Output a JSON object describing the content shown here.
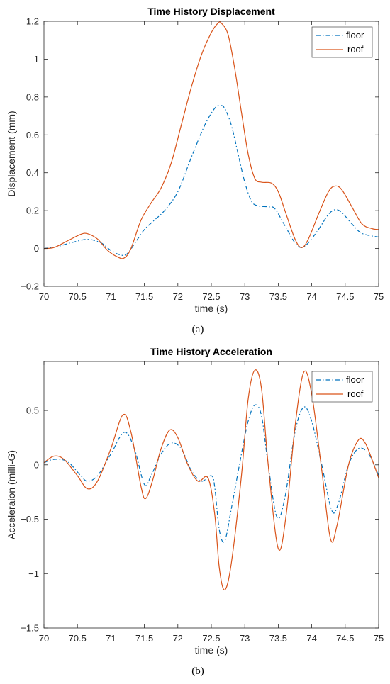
{
  "chart_data": [
    {
      "type": "line",
      "title": "Time History Displacement",
      "xlabel": "time (s)",
      "ylabel": "Displacement (mm)",
      "xlim": [
        70,
        75
      ],
      "ylim": [
        -0.2,
        1.2
      ],
      "xticks": [
        "70",
        "70.5",
        "71",
        "71.5",
        "72",
        "72.5",
        "73",
        "73.5",
        "74",
        "74.5",
        "75"
      ],
      "yticks": [
        "-0.2",
        "0",
        "0.2",
        "0.4",
        "0.6",
        "0.8",
        "1",
        "1.2"
      ],
      "legend_position": "top-right",
      "caption": "(a)",
      "series": [
        {
          "name": "floor",
          "color": "#0072BD",
          "style": "dash-dot",
          "points": [
            [
              70,
              0
            ],
            [
              70.2,
              0.01
            ],
            [
              70.4,
              0.03
            ],
            [
              70.65,
              0.048
            ],
            [
              70.85,
              0.03
            ],
            [
              71,
              -0.01
            ],
            [
              71.15,
              -0.035
            ],
            [
              71.25,
              -0.025
            ],
            [
              71.4,
              0.05
            ],
            [
              71.5,
              0.1
            ],
            [
              71.65,
              0.15
            ],
            [
              71.8,
              0.2
            ],
            [
              72,
              0.3
            ],
            [
              72.2,
              0.48
            ],
            [
              72.4,
              0.65
            ],
            [
              72.55,
              0.74
            ],
            [
              72.63,
              0.755
            ],
            [
              72.7,
              0.74
            ],
            [
              72.8,
              0.65
            ],
            [
              72.9,
              0.5
            ],
            [
              73,
              0.35
            ],
            [
              73.1,
              0.25
            ],
            [
              73.2,
              0.225
            ],
            [
              73.35,
              0.22
            ],
            [
              73.45,
              0.21
            ],
            [
              73.6,
              0.12
            ],
            [
              73.75,
              0.03
            ],
            [
              73.85,
              0.005
            ],
            [
              73.95,
              0.03
            ],
            [
              74.1,
              0.1
            ],
            [
              74.25,
              0.18
            ],
            [
              74.35,
              0.205
            ],
            [
              74.45,
              0.19
            ],
            [
              74.6,
              0.13
            ],
            [
              74.75,
              0.08
            ],
            [
              75,
              0.06
            ]
          ]
        },
        {
          "name": "roof",
          "color": "#D95319",
          "style": "solid",
          "points": [
            [
              70,
              0
            ],
            [
              70.15,
              0.005
            ],
            [
              70.35,
              0.04
            ],
            [
              70.55,
              0.075
            ],
            [
              70.65,
              0.078
            ],
            [
              70.8,
              0.05
            ],
            [
              70.95,
              -0.01
            ],
            [
              71.1,
              -0.045
            ],
            [
              71.2,
              -0.05
            ],
            [
              71.3,
              0
            ],
            [
              71.45,
              0.15
            ],
            [
              71.6,
              0.24
            ],
            [
              71.75,
              0.32
            ],
            [
              71.9,
              0.45
            ],
            [
              72.05,
              0.65
            ],
            [
              72.2,
              0.85
            ],
            [
              72.35,
              1.02
            ],
            [
              72.5,
              1.14
            ],
            [
              72.6,
              1.19
            ],
            [
              72.65,
              1.19
            ],
            [
              72.75,
              1.13
            ],
            [
              72.85,
              0.95
            ],
            [
              72.95,
              0.72
            ],
            [
              73.05,
              0.5
            ],
            [
              73.15,
              0.37
            ],
            [
              73.25,
              0.35
            ],
            [
              73.4,
              0.345
            ],
            [
              73.5,
              0.3
            ],
            [
              73.6,
              0.2
            ],
            [
              73.75,
              0.05
            ],
            [
              73.85,
              0.005
            ],
            [
              73.95,
              0.05
            ],
            [
              74.1,
              0.18
            ],
            [
              74.25,
              0.3
            ],
            [
              74.35,
              0.33
            ],
            [
              74.45,
              0.31
            ],
            [
              74.6,
              0.22
            ],
            [
              74.75,
              0.13
            ],
            [
              74.9,
              0.105
            ],
            [
              75,
              0.1
            ]
          ]
        }
      ]
    },
    {
      "type": "line",
      "title": "Time History Acceleration",
      "xlabel": "time (s)",
      "ylabel": "Acceleraion (milli-G)",
      "xlim": [
        70,
        75
      ],
      "ylim": [
        -1.5,
        0.95
      ],
      "xticks": [
        "70",
        "70.5",
        "71",
        "71.5",
        "72",
        "72.5",
        "73",
        "73.5",
        "74",
        "74.5",
        "75"
      ],
      "yticks": [
        "-1.5",
        "-1",
        "-0.5",
        "0",
        "0.5"
      ],
      "legend_position": "top-right",
      "caption": "(b)",
      "series": [
        {
          "name": "floor",
          "color": "#0072BD",
          "style": "dash-dot",
          "points": [
            [
              70,
              0.02
            ],
            [
              70.15,
              0.05
            ],
            [
              70.35,
              0.03
            ],
            [
              70.55,
              -0.1
            ],
            [
              70.65,
              -0.15
            ],
            [
              70.8,
              -0.1
            ],
            [
              71,
              0.1
            ],
            [
              71.2,
              0.3
            ],
            [
              71.35,
              0.15
            ],
            [
              71.5,
              -0.18
            ],
            [
              71.6,
              -0.1
            ],
            [
              71.75,
              0.1
            ],
            [
              71.9,
              0.2
            ],
            [
              72.05,
              0.15
            ],
            [
              72.2,
              -0.05
            ],
            [
              72.35,
              -0.15
            ],
            [
              72.5,
              -0.1
            ],
            [
              72.55,
              -0.2
            ],
            [
              72.62,
              -0.6
            ],
            [
              72.7,
              -0.7
            ],
            [
              72.8,
              -0.4
            ],
            [
              72.95,
              0.1
            ],
            [
              73.05,
              0.4
            ],
            [
              73.15,
              0.55
            ],
            [
              73.25,
              0.45
            ],
            [
              73.35,
              0
            ],
            [
              73.48,
              -0.48
            ],
            [
              73.6,
              -0.3
            ],
            [
              73.75,
              0.3
            ],
            [
              73.88,
              0.53
            ],
            [
              74,
              0.4
            ],
            [
              74.15,
              0
            ],
            [
              74.3,
              -0.42
            ],
            [
              74.4,
              -0.35
            ],
            [
              74.55,
              0
            ],
            [
              74.7,
              0.15
            ],
            [
              74.85,
              0.1
            ],
            [
              75,
              -0.1
            ]
          ]
        },
        {
          "name": "roof",
          "color": "#D95319",
          "style": "solid",
          "points": [
            [
              70,
              0.02
            ],
            [
              70.15,
              0.08
            ],
            [
              70.3,
              0.05
            ],
            [
              70.5,
              -0.1
            ],
            [
              70.65,
              -0.22
            ],
            [
              70.8,
              -0.15
            ],
            [
              71,
              0.15
            ],
            [
              71.18,
              0.46
            ],
            [
              71.3,
              0.3
            ],
            [
              71.45,
              -0.2
            ],
            [
              71.52,
              -0.31
            ],
            [
              71.62,
              -0.15
            ],
            [
              71.75,
              0.15
            ],
            [
              71.88,
              0.32
            ],
            [
              72,
              0.25
            ],
            [
              72.15,
              0
            ],
            [
              72.3,
              -0.15
            ],
            [
              72.45,
              -0.12
            ],
            [
              72.55,
              -0.45
            ],
            [
              72.62,
              -0.95
            ],
            [
              72.7,
              -1.15
            ],
            [
              72.8,
              -0.9
            ],
            [
              72.95,
              -0.1
            ],
            [
              73.05,
              0.6
            ],
            [
              73.15,
              0.87
            ],
            [
              73.25,
              0.7
            ],
            [
              73.35,
              0
            ],
            [
              73.5,
              -0.77
            ],
            [
              73.62,
              -0.45
            ],
            [
              73.75,
              0.35
            ],
            [
              73.88,
              0.85
            ],
            [
              74,
              0.65
            ],
            [
              74.15,
              -0.05
            ],
            [
              74.28,
              -0.68
            ],
            [
              74.38,
              -0.55
            ],
            [
              74.55,
              0
            ],
            [
              74.7,
              0.23
            ],
            [
              74.8,
              0.2
            ],
            [
              74.9,
              0.05
            ],
            [
              75,
              -0.12
            ]
          ]
        }
      ]
    }
  ]
}
